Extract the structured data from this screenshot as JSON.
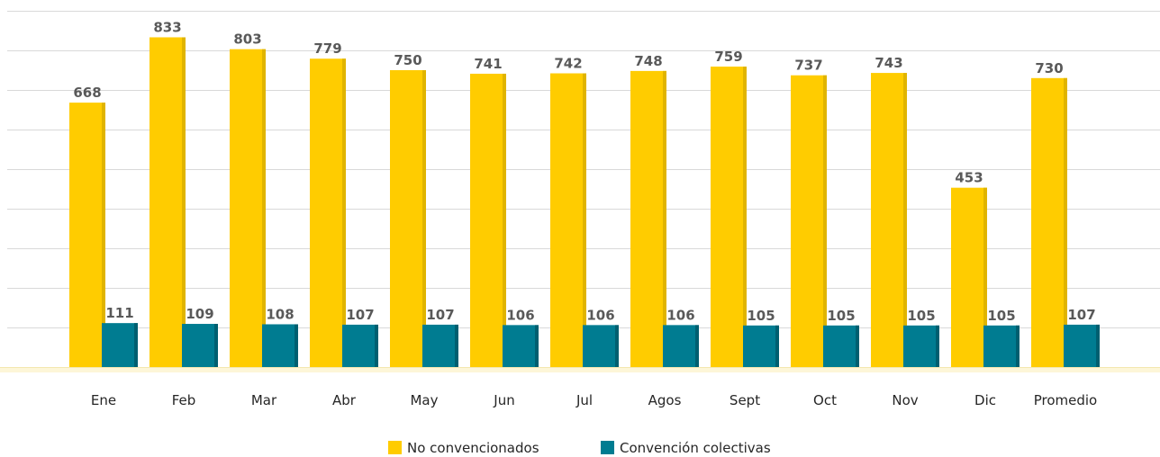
{
  "chart_data": {
    "type": "bar",
    "categories": [
      "Ene",
      "Feb",
      "Mar",
      "Abr",
      "May",
      "Jun",
      "Jul",
      "Agos",
      "Sept",
      "Oct",
      "Nov",
      "Dic",
      "Promedio"
    ],
    "series": [
      {
        "name": "No convencionados",
        "color": "#ffcc00",
        "shade": "#e0b400",
        "values": [
          668,
          833,
          803,
          779,
          750,
          741,
          742,
          748,
          759,
          737,
          743,
          453,
          730
        ]
      },
      {
        "name": "Convención colectivas",
        "color": "#007c91",
        "shade": "#005f70",
        "values": [
          111,
          109,
          108,
          107,
          107,
          106,
          106,
          106,
          105,
          105,
          105,
          105,
          107
        ]
      }
    ],
    "ylim": [
      0,
      900
    ],
    "grid": true,
    "legend_position": "bottom-center"
  }
}
